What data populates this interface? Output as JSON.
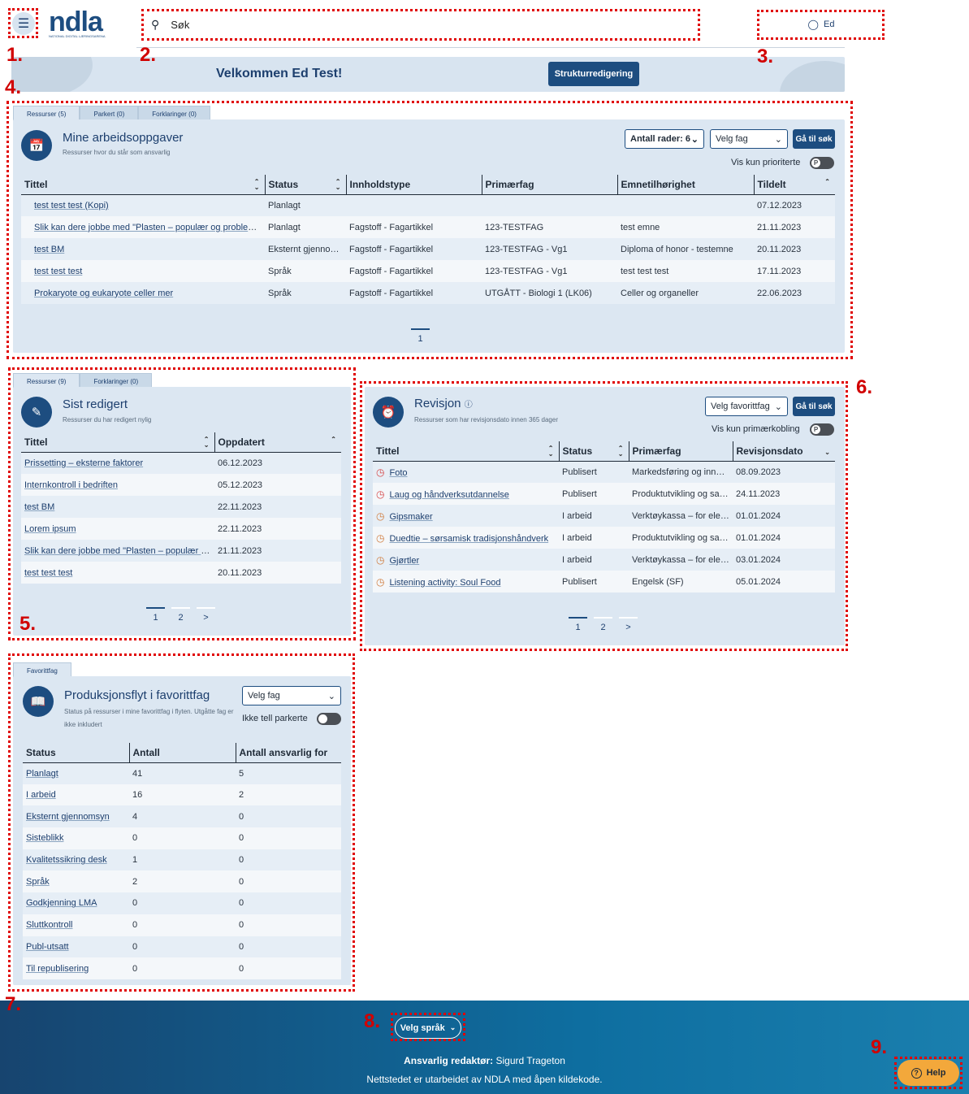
{
  "header": {
    "logo_text": "ndla",
    "logo_subtext": "NATIONAL DIGITAL LÆRINGSARENA",
    "search_placeholder": "Søk",
    "user_label": "Ed"
  },
  "banner": {
    "welcome": "Velkommen Ed Test!",
    "structure_button": "Strukturredigering"
  },
  "tasks": {
    "tabs": [
      "Ressurser (5)",
      "Parkert (0)",
      "Forklaringer (0)"
    ],
    "title": "Mine arbeidsoppgaver",
    "subtitle": "Ressurser hvor du står som ansvarlig",
    "rows_select": "Antall rader: 6",
    "subject_select": "Velg fag",
    "goto_search": "Gå til søk",
    "priority_toggle": "Vis kun prioriterte",
    "columns": [
      "Tittel",
      "Status",
      "Innholdstype",
      "Primærfag",
      "Emnetilhørighet",
      "Tildelt"
    ],
    "rows": [
      [
        "test test test (Kopi)",
        "Planlagt",
        "",
        "",
        "",
        "07.12.2023"
      ],
      [
        "Slik kan dere jobbe med \"Plasten – populær og problematisk\"",
        "Planlagt",
        "Fagstoff - Fagartikkel",
        "123-TESTFAG",
        "test emne",
        "21.11.2023"
      ],
      [
        "test BM",
        "Eksternt gjennomsyn",
        "Fagstoff - Fagartikkel",
        "123-TESTFAG - Vg1",
        "Diploma of honor - testemne",
        "20.11.2023"
      ],
      [
        "test test test",
        "Språk",
        "Fagstoff - Fagartikkel",
        "123-TESTFAG - Vg1",
        "test test test",
        "17.11.2023"
      ],
      [
        "Prokaryote og eukaryote celler mer",
        "Språk",
        "Fagstoff - Fagartikkel",
        "UTGÅTT - Biologi 1 (LK06)",
        "Celler og organeller",
        "22.06.2023"
      ]
    ],
    "pages": [
      "1"
    ]
  },
  "recent": {
    "tabs": [
      "Ressurser (9)",
      "Forklaringer (0)"
    ],
    "title": "Sist redigert",
    "subtitle": "Ressurser du har redigert nylig",
    "columns": [
      "Tittel",
      "Oppdatert"
    ],
    "rows": [
      [
        "Prissetting – eksterne faktorer",
        "06.12.2023"
      ],
      [
        "Internkontroll i bedriften",
        "05.12.2023"
      ],
      [
        "test BM",
        "22.11.2023"
      ],
      [
        "Lorem ipsum",
        "22.11.2023"
      ],
      [
        "Slik kan dere jobbe med \"Plasten – populær og problematisk\"",
        "21.11.2023"
      ],
      [
        "test test test",
        "20.11.2023"
      ]
    ],
    "pages": [
      "1",
      "2",
      ">"
    ]
  },
  "revision": {
    "title": "Revisjon",
    "subtitle": "Ressurser som har revisjonsdato innen 365 dager",
    "fav_select": "Velg favorittfag",
    "goto_search": "Gå til søk",
    "primary_toggle": "Vis kun primærkobling",
    "columns": [
      "Tittel",
      "Status",
      "Primærfag",
      "Revisjonsdato"
    ],
    "rows": [
      [
        "Foto",
        "Publisert",
        "Markedsføring og innovasjon",
        "08.09.2023",
        "#d64545"
      ],
      [
        "Laug og håndverksutdannelse",
        "Publisert",
        "Produktutvikling og samarbeid",
        "24.11.2023",
        "#d64545"
      ],
      [
        "Gipsmaker",
        "I arbeid",
        "Verktøykassa – for elever",
        "01.01.2024",
        "#d07a3a"
      ],
      [
        "Duedtie – sørsamisk tradisjonshåndverk",
        "I arbeid",
        "Produktutvikling og samarbeid",
        "01.01.2024",
        "#d07a3a"
      ],
      [
        "Gjørtler",
        "I arbeid",
        "Verktøykassa – for elever",
        "03.01.2024",
        "#d07a3a"
      ],
      [
        "Listening activity: Soul Food",
        "Publisert",
        "Engelsk (SF)",
        "05.01.2024",
        "#d07a3a"
      ]
    ],
    "pages": [
      "1",
      "2",
      ">"
    ]
  },
  "production": {
    "tabs": [
      "Favorittfag"
    ],
    "title": "Produksjonsflyt i favorittfag",
    "subtitle": "Status på ressurser i mine favorittfag i flyten. Utgåtte fag er ikke inkludert",
    "subject_select": "Velg fag",
    "parked_toggle": "Ikke tell parkerte",
    "columns": [
      "Status",
      "Antall",
      "Antall ansvarlig for"
    ],
    "rows": [
      [
        "Planlagt",
        "41",
        "5"
      ],
      [
        "I arbeid",
        "16",
        "2"
      ],
      [
        "Eksternt gjennomsyn",
        "4",
        "0"
      ],
      [
        "Sisteblikk",
        "0",
        "0"
      ],
      [
        "Kvalitetssikring desk",
        "1",
        "0"
      ],
      [
        "Språk",
        "2",
        "0"
      ],
      [
        "Godkjenning LMA",
        "0",
        "0"
      ],
      [
        "Sluttkontroll",
        "0",
        "0"
      ],
      [
        "Publ-utsatt",
        "0",
        "0"
      ],
      [
        "Til republisering",
        "0",
        "0"
      ]
    ]
  },
  "footer": {
    "language_button": "Velg språk",
    "editor_label": "Ansvarlig redaktør:",
    "editor_name": "Sigurd Trageton",
    "open_source": "Nettstedet er utarbeidet av NDLA med åpen kildekode.",
    "help": "Help"
  },
  "annotations": [
    "1.",
    "2.",
    "3.",
    "4.",
    "5.",
    "6.",
    "7.",
    "8.",
    "9."
  ],
  "colors": {
    "brand": "#1d4d80",
    "panel": "#dce7f2",
    "annotation": "#e00000",
    "help": "#f3a83b"
  }
}
